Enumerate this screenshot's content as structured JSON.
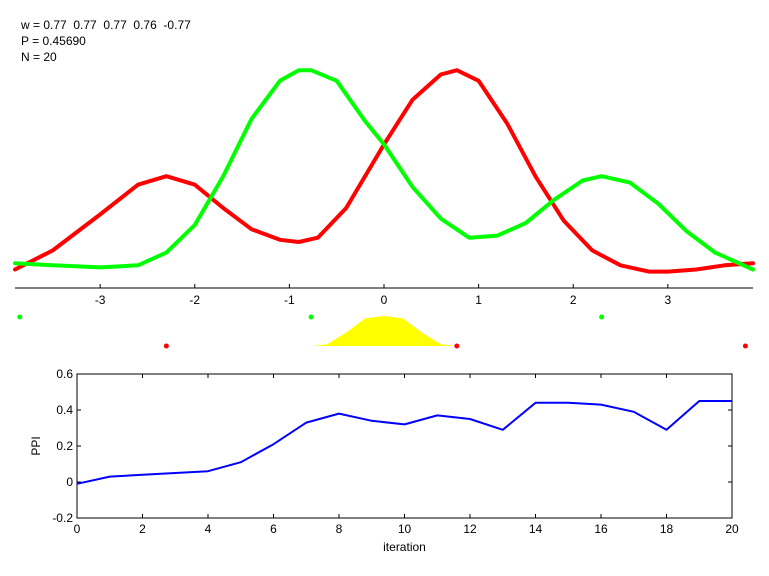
{
  "info": {
    "weights_text": "w = 0.77  0.77  0.77  0.76  -0.77",
    "p_text": "P = 0.45690",
    "n_text": "N = 20"
  },
  "colors": {
    "red": "#ff0000",
    "green": "#00ff00",
    "yellow": "#ffff00",
    "blue": "#0000ff",
    "axis": "#000000"
  },
  "chart_data": [
    {
      "type": "line",
      "title": "",
      "xlabel": "",
      "ylabel": "",
      "xlim": [
        -3.9,
        3.9
      ],
      "xticks": [
        -3,
        -2,
        -1,
        0,
        1,
        2,
        3
      ],
      "xtick_labels": [
        "-3",
        "-2",
        "-1",
        "0",
        "1",
        "2",
        "3"
      ],
      "y_axis_visible": false,
      "series": [
        {
          "color": "red",
          "x": [
            -3.9,
            -3.5,
            -3.0,
            -2.6,
            -2.3,
            -2.0,
            -1.7,
            -1.4,
            -1.1,
            -0.9,
            -0.7,
            -0.4,
            0.0,
            0.3,
            0.6,
            0.77,
            1.0,
            1.3,
            1.6,
            1.9,
            2.2,
            2.5,
            2.8,
            3.0,
            3.3,
            3.6,
            3.9
          ],
          "y": [
            0.04,
            0.13,
            0.3,
            0.44,
            0.48,
            0.44,
            0.33,
            0.23,
            0.18,
            0.17,
            0.19,
            0.33,
            0.63,
            0.84,
            0.96,
            0.98,
            0.93,
            0.73,
            0.48,
            0.27,
            0.13,
            0.06,
            0.03,
            0.03,
            0.04,
            0.06,
            0.07
          ]
        },
        {
          "color": "green",
          "x": [
            -3.9,
            -3.5,
            -3.0,
            -2.6,
            -2.3,
            -2.0,
            -1.7,
            -1.4,
            -1.1,
            -0.9,
            -0.77,
            -0.5,
            -0.2,
            0.0,
            0.3,
            0.6,
            0.9,
            1.2,
            1.5,
            1.8,
            2.1,
            2.3,
            2.6,
            2.9,
            3.2,
            3.5,
            3.9
          ],
          "y": [
            0.07,
            0.06,
            0.05,
            0.06,
            0.12,
            0.25,
            0.48,
            0.75,
            0.93,
            0.98,
            0.98,
            0.93,
            0.74,
            0.63,
            0.43,
            0.28,
            0.19,
            0.2,
            0.26,
            0.37,
            0.46,
            0.48,
            0.45,
            0.35,
            0.22,
            0.12,
            0.04
          ]
        }
      ],
      "markers": [
        {
          "color": "green",
          "row": 1,
          "x": -3.85
        },
        {
          "color": "green",
          "row": 1,
          "x": -0.77
        },
        {
          "color": "green",
          "row": 1,
          "x": 2.3
        },
        {
          "color": "red",
          "row": 2,
          "x": -2.3
        },
        {
          "color": "red",
          "row": 2,
          "x": 0.77
        },
        {
          "color": "red",
          "row": 2,
          "x": 3.82
        }
      ],
      "density": {
        "color": "yellow",
        "x": [
          -0.75,
          -0.6,
          -0.4,
          -0.2,
          0.0,
          0.2,
          0.4,
          0.6,
          0.75
        ],
        "y": [
          0.0,
          0.06,
          0.45,
          0.92,
          1.0,
          0.92,
          0.45,
          0.06,
          0.0
        ]
      }
    },
    {
      "type": "line",
      "title": "",
      "xlabel": "iteration",
      "ylabel": "PPI",
      "xlim": [
        0,
        20
      ],
      "ylim": [
        -0.2,
        0.6
      ],
      "xticks": [
        0,
        2,
        4,
        6,
        8,
        10,
        12,
        14,
        16,
        18,
        20
      ],
      "yticks": [
        -0.2,
        0,
        0.2,
        0.4,
        0.6
      ],
      "ytick_labels": [
        "-0.2",
        "0",
        "0.2",
        "0.4",
        "0.6"
      ],
      "grid": false,
      "series": [
        {
          "color": "blue",
          "x": [
            0,
            1,
            2,
            3,
            4,
            5,
            6,
            7,
            8,
            9,
            10,
            11,
            12,
            13,
            14,
            15,
            16,
            17,
            18,
            19,
            20
          ],
          "y": [
            -0.01,
            0.03,
            0.04,
            0.05,
            0.06,
            0.11,
            0.21,
            0.33,
            0.38,
            0.34,
            0.32,
            0.37,
            0.35,
            0.29,
            0.44,
            0.44,
            0.43,
            0.39,
            0.29,
            0.45,
            0.45
          ]
        }
      ]
    }
  ]
}
